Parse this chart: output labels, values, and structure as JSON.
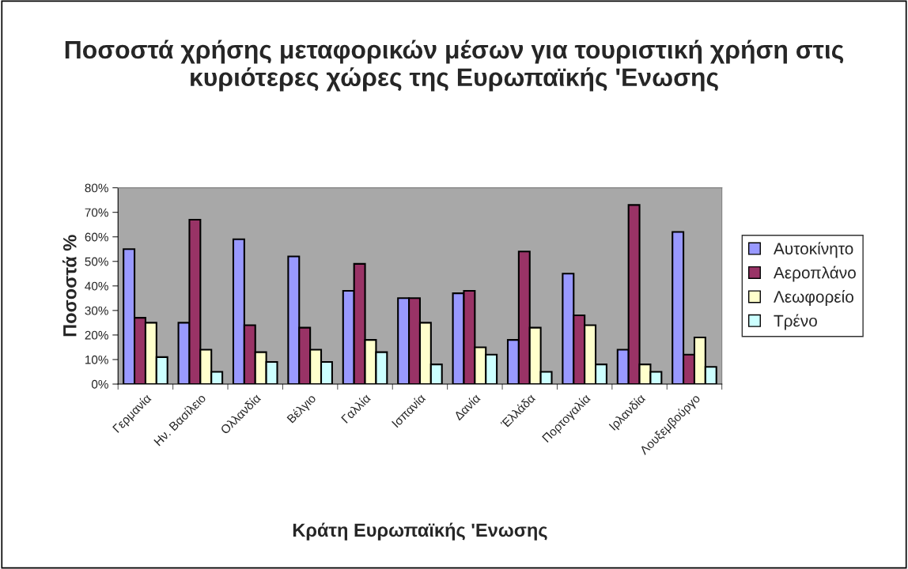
{
  "chart_data": {
    "type": "bar",
    "title": "Ποσοστά χρήσης μεταφορικών μέσων για τουριστική χρήση στις κυριότερες χώρες της Ευρωπαϊκής 'Ενωσης",
    "xlabel": "Κράτη Ευρωπαϊκής 'Ενωσης",
    "ylabel": "Ποσοστά %",
    "categories": [
      "Γερμανία",
      "Ην. Βασίλειο",
      "Ολλανδία",
      "Βέλγιο",
      "Γαλλία",
      "Ισπανία",
      "Δανία",
      "Έλλάδα",
      "Πορτογαλία",
      "Ιρλανδία",
      "Λουξεμβούργο"
    ],
    "series": [
      {
        "name": "Αυτοκίνητο",
        "color": "#9999ff",
        "values": [
          55,
          25,
          59,
          52,
          38,
          35,
          37,
          18,
          45,
          14,
          62
        ]
      },
      {
        "name": "Αεροπλάνο",
        "color": "#993366",
        "values": [
          27,
          67,
          24,
          23,
          49,
          35,
          38,
          54,
          28,
          73,
          12
        ]
      },
      {
        "name": "Λεωφορείο",
        "color": "#ffffcc",
        "values": [
          25,
          14,
          13,
          14,
          18,
          25,
          15,
          23,
          24,
          8,
          19
        ]
      },
      {
        "name": "Τρένο",
        "color": "#ccffff",
        "values": [
          11,
          5,
          9,
          9,
          13,
          8,
          12,
          5,
          8,
          5,
          7
        ]
      }
    ],
    "ylim": [
      0,
      80
    ],
    "yticks": [
      {
        "value": 0,
        "label": "0%"
      },
      {
        "value": 10,
        "label": "10%"
      },
      {
        "value": 20,
        "label": "20%"
      },
      {
        "value": 30,
        "label": "30%"
      },
      {
        "value": 40,
        "label": "40%"
      },
      {
        "value": 50,
        "label": "50%"
      },
      {
        "value": 60,
        "label": "60%"
      },
      {
        "value": 70,
        "label": "70%"
      },
      {
        "value": 80,
        "label": "80%"
      }
    ],
    "grid": false,
    "legend": "right"
  }
}
